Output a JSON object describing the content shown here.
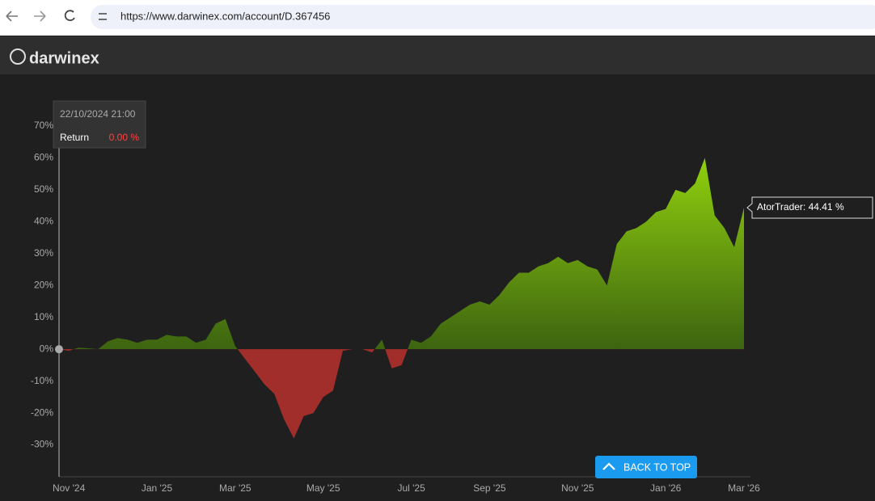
{
  "browser": {
    "url": "https://www.darwinex.com/account/D.367456"
  },
  "header": {
    "logo": "darwinex"
  },
  "chart_data": {
    "type": "area",
    "categories": [
      null,
      "Nov '24",
      null,
      null,
      null,
      null,
      null,
      null,
      null,
      null,
      "Jan '25",
      null,
      null,
      null,
      null,
      null,
      null,
      null,
      "Mar '25",
      null,
      null,
      null,
      null,
      null,
      null,
      null,
      null,
      "May '25",
      null,
      null,
      null,
      null,
      null,
      null,
      null,
      null,
      "Jul '25",
      null,
      null,
      null,
      null,
      null,
      null,
      null,
      "Sep '25",
      null,
      null,
      null,
      null,
      null,
      null,
      null,
      null,
      "Nov '25",
      null,
      null,
      null,
      null,
      null,
      null,
      null,
      null,
      "Jan '26",
      null,
      null,
      null,
      null,
      null,
      null,
      null,
      "Mar '26"
    ],
    "values": [
      0,
      -0.5,
      0.5,
      0.3,
      0,
      2.5,
      3.5,
      3,
      2,
      3,
      3,
      4.5,
      4,
      4,
      2,
      3,
      8,
      9.5,
      1,
      -3,
      -7,
      -11,
      -14,
      -22,
      -28,
      -21,
      -20,
      -15,
      -13,
      -0.5,
      0,
      0,
      -1,
      3,
      -6,
      -5,
      3,
      2,
      4,
      8,
      10,
      12,
      14,
      15,
      14,
      17,
      21,
      24,
      24,
      26,
      27,
      29,
      27,
      28,
      26,
      25,
      20,
      33,
      37,
      38,
      40,
      43,
      44,
      50,
      49,
      52,
      60,
      42,
      38,
      32,
      44.41
    ],
    "colors": {
      "positive_top": "#9ee20e",
      "positive_base": "#3d6410",
      "negative": "#a12e2a"
    },
    "ylim": [
      -40,
      70
    ],
    "yticks": [
      {
        "value": 70,
        "label": "70%"
      },
      {
        "value": 60,
        "label": "60%"
      },
      {
        "value": 50,
        "label": "50%"
      },
      {
        "value": 40,
        "label": "40%"
      },
      {
        "value": 30,
        "label": "30%"
      },
      {
        "value": 20,
        "label": "20%"
      },
      {
        "value": 10,
        "label": "10%"
      },
      {
        "value": 0,
        "label": "0%"
      },
      {
        "value": -10,
        "label": "-10%"
      },
      {
        "value": -20,
        "label": "-20%"
      },
      {
        "value": -30,
        "label": "-30%"
      }
    ],
    "tooltip": {
      "date": "22/10/2024 21:00",
      "label": "Return",
      "value": "0.00 %"
    },
    "end_label": "AtorTrader: 44.41 %"
  },
  "button": {
    "label": "BACK TO TOP"
  }
}
